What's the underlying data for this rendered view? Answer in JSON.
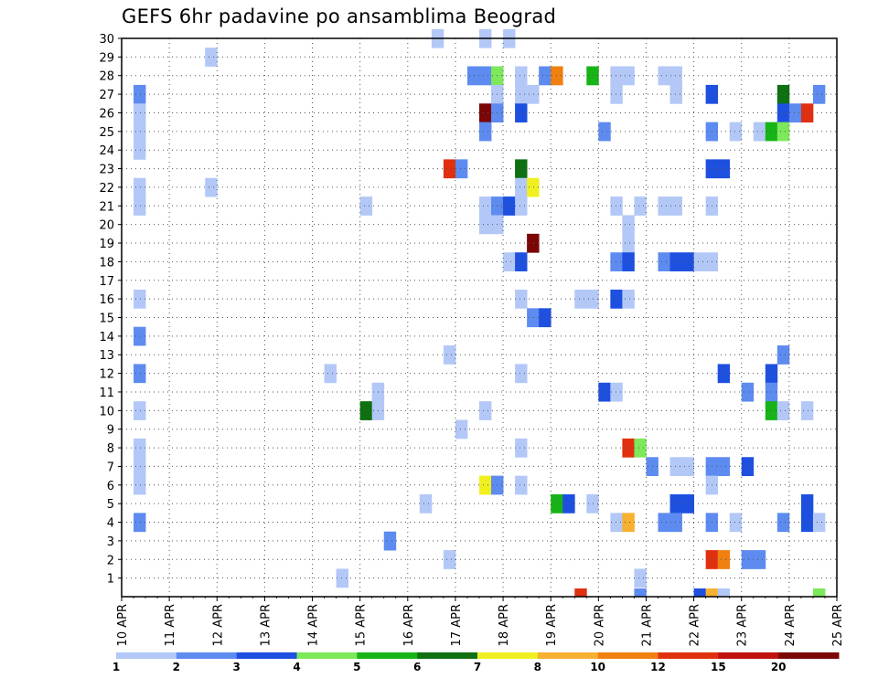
{
  "chart_data": {
    "type": "heatmap",
    "title": "GEFS 6hr padavine po ansamblima Beograd",
    "xlabel": "",
    "ylabel": "",
    "x_tick_labels": [
      "10 APR",
      "11 APR",
      "12 APR",
      "13 APR",
      "14 APR",
      "15 APR",
      "16 APR",
      "17 APR",
      "18 APR",
      "19 APR",
      "20 APR",
      "21 APR",
      "22 APR",
      "23 APR",
      "24 APR",
      "25 APR"
    ],
    "y_tick_labels": [
      "1",
      "2",
      "3",
      "4",
      "5",
      "6",
      "7",
      "8",
      "9",
      "10",
      "11",
      "12",
      "13",
      "14",
      "15",
      "16",
      "17",
      "18",
      "19",
      "20",
      "21",
      "22",
      "23",
      "24",
      "25",
      "26",
      "27",
      "28",
      "29",
      "30"
    ],
    "x_range_days": [
      10,
      25
    ],
    "y_range_members": [
      0,
      30
    ],
    "grid": true,
    "legend_placement": "bottom",
    "legend": {
      "colors": [
        "#b3c8f7",
        "#5d8bf0",
        "#1e50e0",
        "#7de85a",
        "#17b417",
        "#0e7010",
        "#f0f020",
        "#f7b030",
        "#f08010",
        "#e03010",
        "#c01010",
        "#7a0606"
      ],
      "labels": [
        "1",
        "2",
        "3",
        "4",
        "5",
        "6",
        "7",
        "8",
        "10",
        "12",
        "15",
        "20"
      ]
    },
    "cells": [
      {
        "day": 10.25,
        "member": 27,
        "level": 2
      },
      {
        "day": 10.25,
        "member": 26,
        "level": 1
      },
      {
        "day": 10.25,
        "member": 25,
        "level": 1
      },
      {
        "day": 10.25,
        "member": 24,
        "level": 1
      },
      {
        "day": 10.25,
        "member": 22,
        "level": 1
      },
      {
        "day": 10.25,
        "member": 21,
        "level": 1
      },
      {
        "day": 10.25,
        "member": 16,
        "level": 1
      },
      {
        "day": 10.25,
        "member": 14,
        "level": 2
      },
      {
        "day": 10.25,
        "member": 12,
        "level": 2
      },
      {
        "day": 10.25,
        "member": 10,
        "level": 1
      },
      {
        "day": 10.25,
        "member": 8,
        "level": 1
      },
      {
        "day": 10.25,
        "member": 7,
        "level": 1
      },
      {
        "day": 10.25,
        "member": 6,
        "level": 1
      },
      {
        "day": 10.25,
        "member": 4,
        "level": 2
      },
      {
        "day": 11.75,
        "member": 29,
        "level": 1
      },
      {
        "day": 11.75,
        "member": 22,
        "level": 1
      },
      {
        "day": 14.25,
        "member": 12,
        "level": 1
      },
      {
        "day": 14.5,
        "member": 1,
        "level": 1
      },
      {
        "day": 15,
        "member": 21,
        "level": 1
      },
      {
        "day": 15,
        "member": 10,
        "level": 6
      },
      {
        "day": 15.25,
        "member": 11,
        "level": 1
      },
      {
        "day": 15.25,
        "member": 10,
        "level": 1
      },
      {
        "day": 15.5,
        "member": 3,
        "level": 2
      },
      {
        "day": 16.25,
        "member": 5,
        "level": 1
      },
      {
        "day": 16.5,
        "member": 30,
        "level": 1
      },
      {
        "day": 16.75,
        "member": 23,
        "level": 10
      },
      {
        "day": 16.75,
        "member": 13,
        "level": 1
      },
      {
        "day": 16.75,
        "member": 2,
        "level": 1
      },
      {
        "day": 17,
        "member": 23,
        "level": 2
      },
      {
        "day": 17,
        "member": 9,
        "level": 1
      },
      {
        "day": 17.25,
        "member": 28,
        "level": 2
      },
      {
        "day": 17.5,
        "member": 30,
        "level": 1
      },
      {
        "day": 17.5,
        "member": 28,
        "level": 2
      },
      {
        "day": 17.5,
        "member": 26,
        "level": 12
      },
      {
        "day": 17.5,
        "member": 25,
        "level": 2
      },
      {
        "day": 17.5,
        "member": 21,
        "level": 1
      },
      {
        "day": 17.5,
        "member": 20,
        "level": 1
      },
      {
        "day": 17.5,
        "member": 10,
        "level": 1
      },
      {
        "day": 17.5,
        "member": 6,
        "level": 7
      },
      {
        "day": 17.75,
        "member": 28,
        "level": 4
      },
      {
        "day": 17.75,
        "member": 27,
        "level": 1
      },
      {
        "day": 17.75,
        "member": 26,
        "level": 2
      },
      {
        "day": 17.75,
        "member": 21,
        "level": 2
      },
      {
        "day": 17.75,
        "member": 20,
        "level": 1
      },
      {
        "day": 17.75,
        "member": 6,
        "level": 2
      },
      {
        "day": 18,
        "member": 30,
        "level": 1
      },
      {
        "day": 18,
        "member": 21,
        "level": 3
      },
      {
        "day": 18,
        "member": 18,
        "level": 1
      },
      {
        "day": 18.25,
        "member": 28,
        "level": 1
      },
      {
        "day": 18.25,
        "member": 27,
        "level": 1
      },
      {
        "day": 18.25,
        "member": 26,
        "level": 3
      },
      {
        "day": 18.25,
        "member": 23,
        "level": 6
      },
      {
        "day": 18.25,
        "member": 22,
        "level": 1
      },
      {
        "day": 18.25,
        "member": 21,
        "level": 1
      },
      {
        "day": 18.25,
        "member": 18,
        "level": 3
      },
      {
        "day": 18.25,
        "member": 16,
        "level": 1
      },
      {
        "day": 18.25,
        "member": 12,
        "level": 1
      },
      {
        "day": 18.25,
        "member": 8,
        "level": 1
      },
      {
        "day": 18.25,
        "member": 6,
        "level": 1
      },
      {
        "day": 18.5,
        "member": 27,
        "level": 1
      },
      {
        "day": 18.5,
        "member": 22,
        "level": 7
      },
      {
        "day": 18.5,
        "member": 19,
        "level": 12
      },
      {
        "day": 18.5,
        "member": 15,
        "level": 2
      },
      {
        "day": 18.75,
        "member": 28,
        "level": 2
      },
      {
        "day": 18.75,
        "member": 15,
        "level": 3
      },
      {
        "day": 19,
        "member": 28,
        "level": 9
      },
      {
        "day": 19,
        "member": 5,
        "level": 5
      },
      {
        "day": 19.25,
        "member": 5,
        "level": 3
      },
      {
        "day": 19.5,
        "member": 0,
        "level": 10
      },
      {
        "day": 19.5,
        "member": 16,
        "level": 1
      },
      {
        "day": 19.75,
        "member": 28,
        "level": 5
      },
      {
        "day": 19.75,
        "member": 16,
        "level": 1
      },
      {
        "day": 19.75,
        "member": 5,
        "level": 1
      },
      {
        "day": 20,
        "member": 25,
        "level": 2
      },
      {
        "day": 20,
        "member": 11,
        "level": 3
      },
      {
        "day": 20.25,
        "member": 28,
        "level": 1
      },
      {
        "day": 20.25,
        "member": 27,
        "level": 1
      },
      {
        "day": 20.25,
        "member": 21,
        "level": 1
      },
      {
        "day": 20.25,
        "member": 18,
        "level": 2
      },
      {
        "day": 20.25,
        "member": 16,
        "level": 3
      },
      {
        "day": 20.25,
        "member": 11,
        "level": 1
      },
      {
        "day": 20.25,
        "member": 4,
        "level": 1
      },
      {
        "day": 20.5,
        "member": 28,
        "level": 1
      },
      {
        "day": 20.5,
        "member": 20,
        "level": 1
      },
      {
        "day": 20.5,
        "member": 19,
        "level": 1
      },
      {
        "day": 20.5,
        "member": 18,
        "level": 3
      },
      {
        "day": 20.5,
        "member": 16,
        "level": 1
      },
      {
        "day": 20.5,
        "member": 8,
        "level": 10
      },
      {
        "day": 20.5,
        "member": 4,
        "level": 8
      },
      {
        "day": 20.75,
        "member": 21,
        "level": 1
      },
      {
        "day": 20.75,
        "member": 8,
        "level": 4
      },
      {
        "day": 20.75,
        "member": 1,
        "level": 1
      },
      {
        "day": 20.75,
        "member": 0,
        "level": 2
      },
      {
        "day": 21,
        "member": 7,
        "level": 2
      },
      {
        "day": 21.25,
        "member": 28,
        "level": 1
      },
      {
        "day": 21.25,
        "member": 21,
        "level": 1
      },
      {
        "day": 21.25,
        "member": 18,
        "level": 2
      },
      {
        "day": 21.25,
        "member": 4,
        "level": 2
      },
      {
        "day": 21.5,
        "member": 28,
        "level": 1
      },
      {
        "day": 21.5,
        "member": 27,
        "level": 1
      },
      {
        "day": 21.5,
        "member": 21,
        "level": 1
      },
      {
        "day": 21.5,
        "member": 18,
        "level": 3
      },
      {
        "day": 21.5,
        "member": 7,
        "level": 1
      },
      {
        "day": 21.5,
        "member": 5,
        "level": 3
      },
      {
        "day": 21.5,
        "member": 4,
        "level": 2
      },
      {
        "day": 21.75,
        "member": 18,
        "level": 3
      },
      {
        "day": 21.75,
        "member": 7,
        "level": 1
      },
      {
        "day": 21.75,
        "member": 5,
        "level": 3
      },
      {
        "day": 22,
        "member": 18,
        "level": 1
      },
      {
        "day": 22,
        "member": 0,
        "level": 3
      },
      {
        "day": 22.25,
        "member": 27,
        "level": 3
      },
      {
        "day": 22.25,
        "member": 25,
        "level": 2
      },
      {
        "day": 22.25,
        "member": 23,
        "level": 3
      },
      {
        "day": 22.25,
        "member": 21,
        "level": 1
      },
      {
        "day": 22.25,
        "member": 18,
        "level": 1
      },
      {
        "day": 22.25,
        "member": 7,
        "level": 2
      },
      {
        "day": 22.25,
        "member": 6,
        "level": 1
      },
      {
        "day": 22.25,
        "member": 4,
        "level": 2
      },
      {
        "day": 22.25,
        "member": 2,
        "level": 10
      },
      {
        "day": 22.25,
        "member": 0,
        "level": 8
      },
      {
        "day": 22.5,
        "member": 23,
        "level": 3
      },
      {
        "day": 22.5,
        "member": 12,
        "level": 3
      },
      {
        "day": 22.5,
        "member": 7,
        "level": 2
      },
      {
        "day": 22.5,
        "member": 2,
        "level": 9
      },
      {
        "day": 22.5,
        "member": 0,
        "level": 1
      },
      {
        "day": 22.75,
        "member": 25,
        "level": 1
      },
      {
        "day": 22.75,
        "member": 4,
        "level": 1
      },
      {
        "day": 23,
        "member": 11,
        "level": 2
      },
      {
        "day": 23,
        "member": 7,
        "level": 3
      },
      {
        "day": 23,
        "member": 2,
        "level": 2
      },
      {
        "day": 23.25,
        "member": 25,
        "level": 1
      },
      {
        "day": 23.25,
        "member": 2,
        "level": 2
      },
      {
        "day": 23.5,
        "member": 25,
        "level": 5
      },
      {
        "day": 23.5,
        "member": 12,
        "level": 3
      },
      {
        "day": 23.5,
        "member": 11,
        "level": 2
      },
      {
        "day": 23.5,
        "member": 10,
        "level": 5
      },
      {
        "day": 23.75,
        "member": 27,
        "level": 6
      },
      {
        "day": 23.75,
        "member": 26,
        "level": 3
      },
      {
        "day": 23.75,
        "member": 25,
        "level": 4
      },
      {
        "day": 23.75,
        "member": 13,
        "level": 2
      },
      {
        "day": 23.75,
        "member": 10,
        "level": 1
      },
      {
        "day": 23.75,
        "member": 4,
        "level": 2
      },
      {
        "day": 24,
        "member": 26,
        "level": 2
      },
      {
        "day": 24.25,
        "member": 26,
        "level": 10
      },
      {
        "day": 24.25,
        "member": 10,
        "level": 1
      },
      {
        "day": 24.25,
        "member": 5,
        "level": 3
      },
      {
        "day": 24.25,
        "member": 4,
        "level": 3
      },
      {
        "day": 24.5,
        "member": 27,
        "level": 2
      },
      {
        "day": 24.5,
        "member": 4,
        "level": 1
      },
      {
        "day": 24.5,
        "member": 0,
        "level": 4
      }
    ]
  }
}
